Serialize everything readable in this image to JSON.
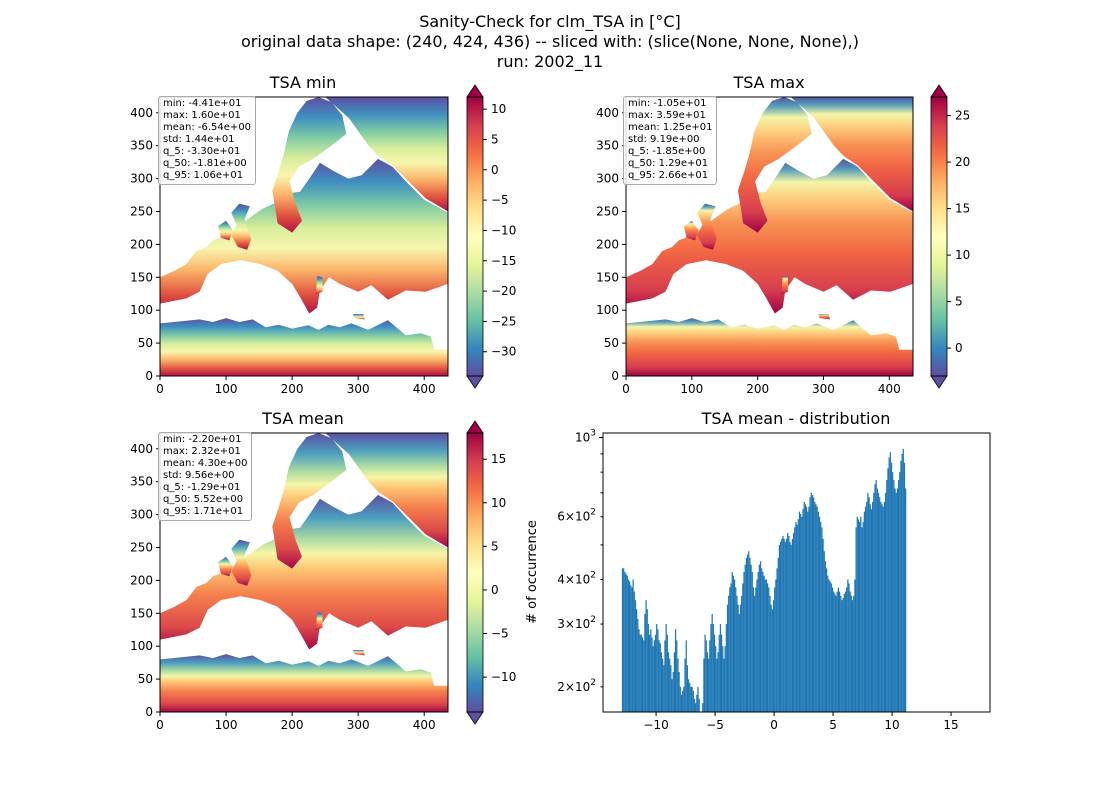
{
  "figure": {
    "title_lines": [
      "Sanity-Check for clm_TSA in [°C]",
      "original data shape: (240, 424, 436) -- sliced with: (slice(None, None, None),)",
      "run: 2002_11"
    ]
  },
  "colors": {
    "spectral_r": [
      "#5e4fa2",
      "#3288bd",
      "#66c2a5",
      "#abdda4",
      "#e6f598",
      "#ffffbf",
      "#fee08b",
      "#fdae61",
      "#f46d43",
      "#d53e4f",
      "#9e0142"
    ],
    "bar": "#1f77b4",
    "land_gradient_note": "colors follow Spectral_r colormap"
  },
  "chart_data": [
    {
      "type": "heatmap",
      "title": "TSA min",
      "xticks": [
        0,
        100,
        200,
        300,
        400
      ],
      "yticks": [
        0,
        50,
        100,
        150,
        200,
        250,
        300,
        350,
        400
      ],
      "xlim": [
        0,
        436
      ],
      "ylim": [
        0,
        424
      ],
      "colorbar": {
        "vmin": -34,
        "vmax": 12,
        "ticks": [
          -30,
          -25,
          -20,
          -15,
          -10,
          -5,
          0,
          5,
          10
        ],
        "extend": "both"
      },
      "stats": [
        "min: -4.41e+01",
        "max: 1.60e+01",
        "mean: -6.54e+00",
        "std: 1.44e+01",
        "q_5: -3.30e+01",
        "q_50: -1.81e+00",
        "q_95: 1.06e+01"
      ]
    },
    {
      "type": "heatmap",
      "title": "TSA max",
      "xticks": [
        0,
        100,
        200,
        300,
        400
      ],
      "yticks": [
        0,
        50,
        100,
        150,
        200,
        250,
        300,
        350,
        400
      ],
      "xlim": [
        0,
        436
      ],
      "ylim": [
        0,
        424
      ],
      "colorbar": {
        "vmin": -3,
        "vmax": 27,
        "ticks": [
          0,
          5,
          10,
          15,
          20,
          25
        ],
        "extend": "both"
      },
      "stats": [
        "min: -1.05e+01",
        "max: 3.59e+01",
        "mean: 1.25e+01",
        "std: 9.19e+00",
        "q_5: -1.85e+00",
        "q_50: 1.29e+01",
        "q_95: 2.66e+01"
      ]
    },
    {
      "type": "heatmap",
      "title": "TSA mean",
      "xticks": [
        0,
        100,
        200,
        300,
        400
      ],
      "yticks": [
        0,
        50,
        100,
        150,
        200,
        250,
        300,
        350,
        400
      ],
      "xlim": [
        0,
        436
      ],
      "ylim": [
        0,
        424
      ],
      "colorbar": {
        "vmin": -14,
        "vmax": 18,
        "ticks": [
          -10,
          -5,
          0,
          5,
          10,
          15
        ],
        "extend": "both"
      },
      "stats": [
        "min: -2.20e+01",
        "max: 2.32e+01",
        "mean: 4.30e+00",
        "std: 9.56e+00",
        "q_5: -1.29e+01",
        "q_50: 5.52e+00",
        "q_95: 1.71e+01"
      ]
    },
    {
      "type": "bar",
      "title": "TSA mean - distribution",
      "ylabel": "# of occurrence",
      "yscale": "log",
      "xlim": [
        -14.5,
        18.3
      ],
      "ylim": [
        170,
        1030
      ],
      "xticks": [
        -10,
        -5,
        0,
        5,
        10,
        15
      ],
      "yticks_major": [
        {
          "value": 1000,
          "base": "10",
          "exp": "3"
        }
      ],
      "yticks_minor_labeled": [
        {
          "value": 200,
          "mant": "2",
          "base": "10",
          "exp": "2"
        },
        {
          "value": 300,
          "mant": "3",
          "base": "10",
          "exp": "2"
        },
        {
          "value": 400,
          "mant": "4",
          "base": "10",
          "exp": "2"
        },
        {
          "value": 600,
          "mant": "6",
          "base": "10",
          "exp": "2"
        }
      ],
      "yticks_minor_unlabeled": [
        500,
        700,
        800,
        900
      ],
      "bin_start": -12.9,
      "bin_width": 0.1,
      "values": [
        430,
        430,
        420,
        415,
        410,
        400,
        395,
        385,
        380,
        400,
        370,
        350,
        330,
        310,
        290,
        280,
        280,
        275,
        270,
        320,
        350,
        330,
        300,
        280,
        290,
        275,
        260,
        270,
        280,
        300,
        290,
        270,
        265,
        250,
        240,
        230,
        270,
        300,
        280,
        250,
        240,
        230,
        210,
        220,
        250,
        290,
        270,
        240,
        220,
        200,
        190,
        195,
        200,
        240,
        270,
        230,
        210,
        205,
        200,
        200,
        195,
        185,
        180,
        190,
        200,
        185,
        170,
        170,
        180,
        240,
        280,
        270,
        250,
        240,
        270,
        300,
        320,
        300,
        280,
        260,
        240,
        250,
        280,
        300,
        280,
        260,
        240,
        260,
        300,
        340,
        360,
        380,
        390,
        420,
        410,
        400,
        380,
        360,
        340,
        320,
        340,
        360,
        390,
        420,
        440,
        460,
        470,
        480,
        460,
        440,
        420,
        380,
        360,
        380,
        400,
        420,
        440,
        450,
        430,
        420,
        410,
        400,
        400,
        390,
        380,
        360,
        340,
        330,
        350,
        380,
        400,
        430,
        460,
        500,
        510,
        520,
        530,
        520,
        510,
        520,
        540,
        530,
        510,
        500,
        520,
        540,
        560,
        580,
        570,
        590,
        620,
        610,
        600,
        630,
        660,
        650,
        640,
        620,
        640,
        680,
        700,
        690,
        680,
        660,
        650,
        640,
        620,
        600,
        580,
        560,
        520,
        480,
        450,
        430,
        410,
        400,
        395,
        390,
        380,
        370,
        365,
        360,
        370,
        380,
        370,
        360,
        350,
        355,
        365,
        370,
        380,
        400,
        390,
        370,
        360,
        350,
        360,
        400,
        560,
        600,
        590,
        580,
        600,
        560,
        580,
        620,
        640,
        660,
        700,
        680,
        650,
        630,
        660,
        700,
        740,
        760,
        720,
        700,
        680,
        660,
        650,
        640,
        660,
        700,
        760,
        820,
        880,
        910,
        850,
        800,
        760,
        720,
        700,
        720,
        760,
        800,
        860,
        900,
        930,
        850,
        720
      ]
    }
  ]
}
